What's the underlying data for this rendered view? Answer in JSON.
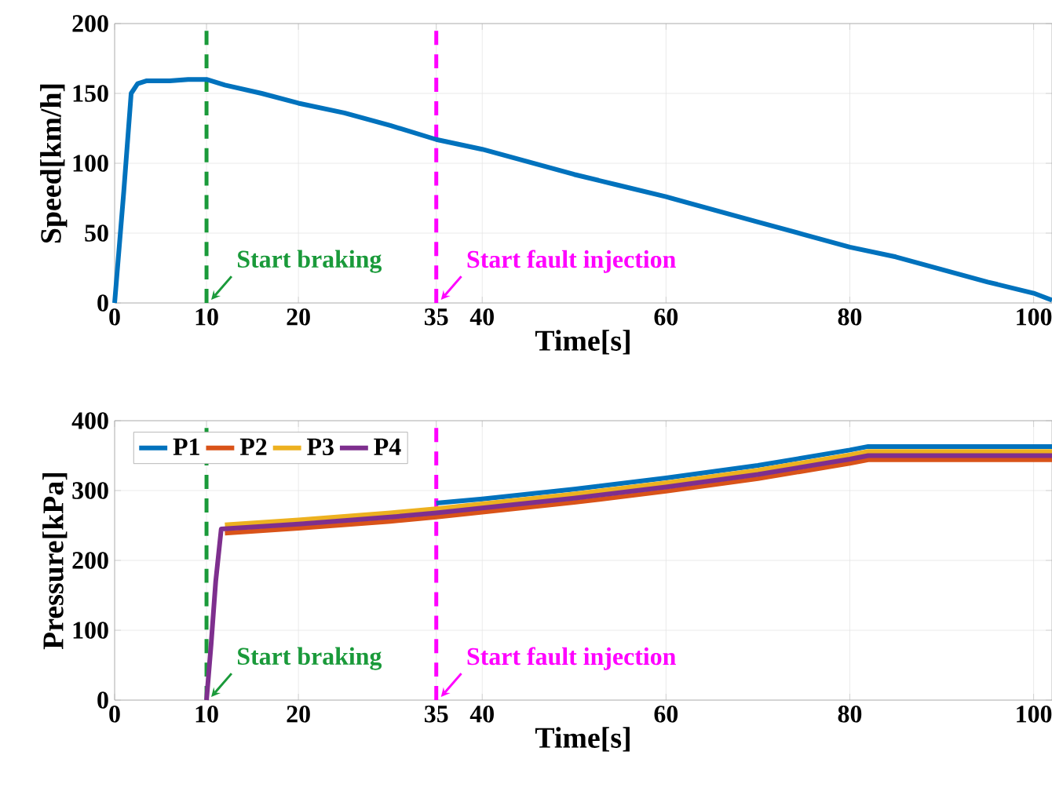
{
  "chart_data": [
    {
      "type": "line",
      "xlabel": "Time[s]",
      "ylabel": "Speed[km/h]",
      "xlim": [
        0,
        102
      ],
      "ylim": [
        0,
        200
      ],
      "xticks": [
        0,
        10,
        20,
        35,
        40,
        60,
        80,
        100
      ],
      "yticks": [
        0,
        50,
        100,
        150,
        200
      ],
      "grid": true,
      "series": [
        {
          "color": "#0072bd",
          "x": [
            0,
            1,
            1.8,
            2.5,
            3.5,
            6,
            8,
            10,
            12,
            16,
            20,
            25,
            30,
            35,
            40,
            45,
            50,
            55,
            60,
            65,
            70,
            75,
            80,
            85,
            90,
            95,
            100,
            102
          ],
          "values": [
            0,
            80,
            150,
            157,
            159,
            159,
            160,
            160,
            156,
            150,
            143,
            136,
            127,
            117,
            110,
            101,
            92,
            84,
            76,
            67,
            58,
            49,
            40,
            33,
            24,
            15,
            7,
            2
          ]
        }
      ],
      "ref_lines": [
        {
          "axis": "x",
          "value": 10,
          "label": "Start braking",
          "color": "#1a9a3a",
          "line_style": "dashed"
        },
        {
          "axis": "x",
          "value": 35,
          "label": "Start fault injection",
          "color": "#ff00ff",
          "line_style": "dashed"
        }
      ]
    },
    {
      "type": "line",
      "xlabel": "Time[s]",
      "ylabel": "Pressure[kPa]",
      "xlim": [
        0,
        102
      ],
      "ylim": [
        0,
        400
      ],
      "xticks": [
        0,
        10,
        20,
        35,
        40,
        60,
        80,
        100
      ],
      "yticks": [
        0,
        100,
        200,
        300,
        400
      ],
      "grid": true,
      "legend": "top left",
      "series": [
        {
          "name": "P1",
          "color": "#0072bd",
          "x": [
            35,
            40,
            50,
            60,
            70,
            80,
            82,
            90,
            102
          ],
          "values": [
            282,
            288,
            302,
            318,
            336,
            358,
            363,
            363,
            363
          ]
        },
        {
          "name": "P2",
          "color": "#d95319",
          "x": [
            12,
            20,
            30,
            35,
            40,
            50,
            60,
            70,
            80,
            82,
            90,
            102
          ],
          "values": [
            239,
            246,
            256,
            262,
            269,
            283,
            299,
            317,
            339,
            344,
            344,
            344
          ]
        },
        {
          "name": "P3",
          "color": "#edb120",
          "x": [
            12,
            20,
            30,
            35,
            40,
            50,
            60,
            70,
            80,
            82,
            90,
            102
          ],
          "values": [
            251,
            258,
            268,
            274,
            281,
            295,
            311,
            329,
            351,
            356,
            356,
            356
          ]
        },
        {
          "name": "P4",
          "color": "#7e2f8e",
          "x": [
            10,
            10.5,
            11,
            11.6,
            20,
            30,
            35,
            40,
            50,
            60,
            70,
            80,
            82,
            90,
            102
          ],
          "values": [
            0,
            80,
            170,
            245,
            252,
            262,
            268,
            275,
            289,
            305,
            323,
            345,
            350,
            350,
            350
          ]
        }
      ],
      "ref_lines": [
        {
          "axis": "x",
          "value": 10,
          "label": "Start braking",
          "color": "#1a9a3a",
          "line_style": "dashed"
        },
        {
          "axis": "x",
          "value": 35,
          "label": "Start fault injection",
          "color": "#ff00ff",
          "line_style": "dashed"
        }
      ]
    }
  ]
}
